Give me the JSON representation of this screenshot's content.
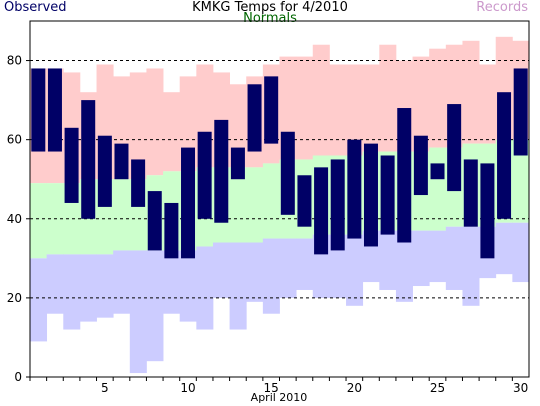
{
  "chart_data": {
    "type": "bar",
    "title": "KMKG Temps for 4/2010",
    "xlabel": "April 2010",
    "ylabel": "",
    "ylim": [
      0,
      90
    ],
    "xlim": [
      0.5,
      30.5
    ],
    "yticks": [
      0,
      20,
      40,
      60,
      80
    ],
    "xticks": [
      5,
      10,
      15,
      20,
      25,
      30
    ],
    "grid": "horizontal dashed at 20, 40, 60, 80",
    "legend": [
      "Observed",
      "Normals",
      "Records"
    ],
    "colors": {
      "observed": "#000066",
      "normal": "#ccffcc",
      "record_high": "#ffcccc",
      "record_low": "#ccccff",
      "observed_label": "#000066",
      "normals_label": "#006600",
      "records_label": "#cc99cc"
    },
    "days": [
      1,
      2,
      3,
      4,
      5,
      6,
      7,
      8,
      9,
      10,
      11,
      12,
      13,
      14,
      15,
      16,
      17,
      18,
      19,
      20,
      21,
      22,
      23,
      24,
      25,
      26,
      27,
      28,
      29,
      30
    ],
    "record_high": [
      78,
      78,
      77,
      72,
      79,
      76,
      77,
      78,
      72,
      76,
      79,
      77,
      74,
      76,
      79,
      81,
      81,
      84,
      79,
      79,
      79,
      84,
      80,
      81,
      83,
      84,
      85,
      79,
      86,
      85
    ],
    "normal_high": [
      49,
      49,
      49,
      50,
      50,
      50,
      50,
      51,
      52,
      52,
      53,
      53,
      53,
      53,
      54,
      55,
      55,
      56,
      56,
      56,
      57,
      57,
      57,
      57,
      58,
      58,
      59,
      59,
      60,
      60
    ],
    "normal_low": [
      30,
      31,
      31,
      31,
      31,
      32,
      32,
      32,
      32,
      32,
      33,
      34,
      34,
      34,
      35,
      35,
      35,
      36,
      36,
      36,
      37,
      37,
      37,
      37,
      37,
      38,
      38,
      38,
      39,
      39
    ],
    "record_low": [
      9,
      16,
      12,
      14,
      15,
      16,
      1,
      4,
      16,
      14,
      12,
      20,
      12,
      19,
      16,
      20,
      22,
      20,
      20,
      18,
      24,
      22,
      19,
      23,
      24,
      22,
      18,
      25,
      26,
      24
    ],
    "observed_high": [
      78,
      78,
      63,
      70,
      61,
      59,
      55,
      47,
      44,
      58,
      62,
      65,
      58,
      74,
      76,
      62,
      51,
      53,
      55,
      60,
      59,
      56,
      68,
      61,
      54,
      69,
      55,
      54,
      72,
      78
    ],
    "observed_low": [
      57,
      57,
      44,
      40,
      43,
      50,
      43,
      32,
      30,
      30,
      40,
      39,
      50,
      57,
      59,
      41,
      38,
      31,
      32,
      35,
      33,
      36,
      34,
      46,
      50,
      47,
      38,
      30,
      40,
      56
    ]
  }
}
